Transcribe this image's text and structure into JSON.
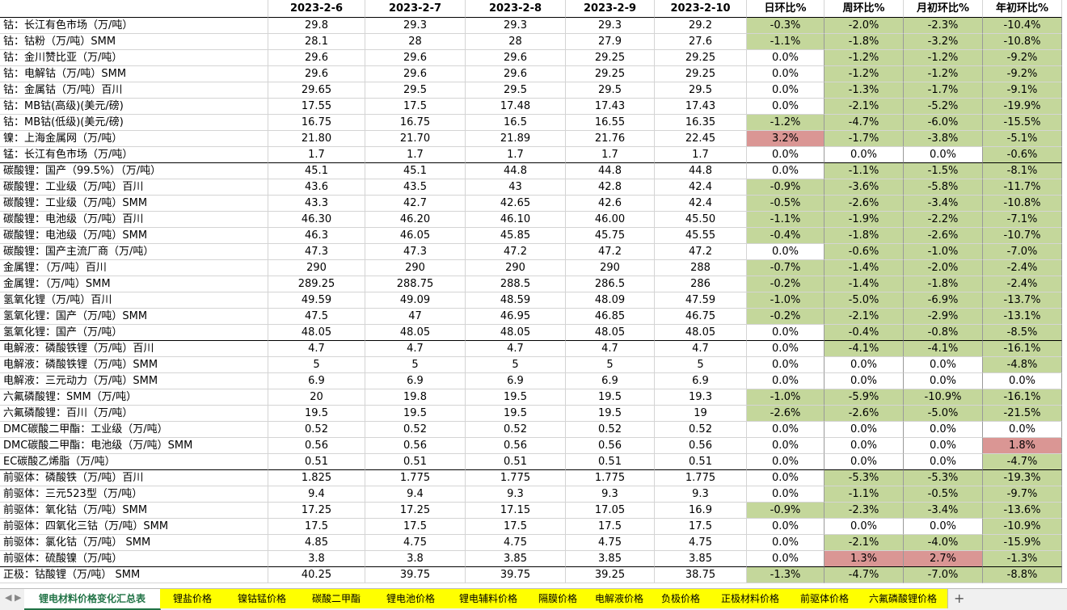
{
  "table": {
    "header": [
      "2023-2-6",
      "2023-2-7",
      "2023-2-8",
      "2023-2-9",
      "2023-2-10",
      "日环比%",
      "周环比%",
      "月初环比%",
      "年初环比%"
    ],
    "rows": [
      [
        "钴：长江有色市场（万/吨）",
        "29.8",
        "29.3",
        "29.3",
        "29.3",
        "29.2",
        "-0.3%",
        "-2.0%",
        "-2.3%",
        "-10.4%"
      ],
      [
        "钴：钴粉（万/吨）SMM",
        "28.1",
        "28",
        "28",
        "27.9",
        "27.6",
        "-1.1%",
        "-1.8%",
        "-3.2%",
        "-10.8%"
      ],
      [
        "钴：金川赞比亚（万/吨）",
        "29.6",
        "29.6",
        "29.6",
        "29.25",
        "29.25",
        "0.0%",
        "-1.2%",
        "-1.2%",
        "-9.2%"
      ],
      [
        "钴：电解钴（万/吨）SMM",
        "29.6",
        "29.6",
        "29.6",
        "29.25",
        "29.25",
        "0.0%",
        "-1.2%",
        "-1.2%",
        "-9.2%"
      ],
      [
        "钴：金属钴（万/吨）百川",
        "29.65",
        "29.5",
        "29.5",
        "29.5",
        "29.5",
        "0.0%",
        "-1.3%",
        "-1.7%",
        "-9.1%"
      ],
      [
        "钴：MB钴(高级)(美元/磅)",
        "17.55",
        "17.5",
        "17.48",
        "17.43",
        "17.43",
        "0.0%",
        "-2.1%",
        "-5.2%",
        "-19.9%"
      ],
      [
        "钴：MB钴(低级)(美元/磅)",
        "16.75",
        "16.75",
        "16.5",
        "16.55",
        "16.35",
        "-1.2%",
        "-4.7%",
        "-6.0%",
        "-15.5%"
      ],
      [
        "镍：上海金属网（万/吨）",
        "21.80",
        "21.70",
        "21.89",
        "21.76",
        "22.45",
        "3.2%",
        "-1.7%",
        "-3.8%",
        "-5.1%"
      ],
      [
        "锰：长江有色市场（万/吨）",
        "1.7",
        "1.7",
        "1.7",
        "1.7",
        "1.7",
        "0.0%",
        "0.0%",
        "0.0%",
        "-0.6%"
      ],
      [
        "碳酸锂：国产（99.5%）（万/吨）",
        "45.1",
        "45.1",
        "44.8",
        "44.8",
        "44.8",
        "0.0%",
        "-1.1%",
        "-1.5%",
        "-8.1%"
      ],
      [
        "碳酸锂：工业级（万/吨）百川",
        "43.6",
        "43.5",
        "43",
        "42.8",
        "42.4",
        "-0.9%",
        "-3.6%",
        "-5.8%",
        "-11.7%"
      ],
      [
        "碳酸锂：工业级（万/吨）SMM",
        "43.3",
        "42.7",
        "42.65",
        "42.6",
        "42.4",
        "-0.5%",
        "-2.6%",
        "-3.4%",
        "-10.8%"
      ],
      [
        "碳酸锂：电池级（万/吨）百川",
        "46.30",
        "46.20",
        "46.10",
        "46.00",
        "45.50",
        "-1.1%",
        "-1.9%",
        "-2.2%",
        "-7.1%"
      ],
      [
        "碳酸锂：电池级（万/吨）SMM",
        "46.3",
        "46.05",
        "45.85",
        "45.75",
        "45.55",
        "-0.4%",
        "-1.8%",
        "-2.6%",
        "-10.7%"
      ],
      [
        "碳酸锂：国产主流厂商（万/吨）",
        "47.3",
        "47.3",
        "47.2",
        "47.2",
        "47.2",
        "0.0%",
        "-0.6%",
        "-1.0%",
        "-7.0%"
      ],
      [
        "金属锂：（万/吨）百川",
        "290",
        "290",
        "290",
        "290",
        "288",
        "-0.7%",
        "-1.4%",
        "-2.0%",
        "-2.4%"
      ],
      [
        "金属锂：（万/吨）SMM",
        "289.25",
        "288.75",
        "288.5",
        "286.5",
        "286",
        "-0.2%",
        "-1.4%",
        "-1.8%",
        "-2.4%"
      ],
      [
        "氢氧化锂（万/吨）百川",
        "49.59",
        "49.09",
        "48.59",
        "48.09",
        "47.59",
        "-1.0%",
        "-5.0%",
        "-6.9%",
        "-13.7%"
      ],
      [
        "氢氧化锂：国产（万/吨）SMM",
        "47.5",
        "47",
        "46.95",
        "46.85",
        "46.75",
        "-0.2%",
        "-2.1%",
        "-2.9%",
        "-13.1%"
      ],
      [
        "氢氧化锂：国产（万/吨）",
        "48.05",
        "48.05",
        "48.05",
        "48.05",
        "48.05",
        "0.0%",
        "-0.4%",
        "-0.8%",
        "-8.5%"
      ],
      [
        "电解液：磷酸铁锂（万/吨）百川",
        "4.7",
        "4.7",
        "4.7",
        "4.7",
        "4.7",
        "0.0%",
        "-4.1%",
        "-4.1%",
        "-16.1%"
      ],
      [
        "电解液：磷酸铁锂（万/吨）SMM",
        "5",
        "5",
        "5",
        "5",
        "5",
        "0.0%",
        "0.0%",
        "0.0%",
        "-4.8%"
      ],
      [
        "电解液：三元动力（万/吨）SMM",
        "6.9",
        "6.9",
        "6.9",
        "6.9",
        "6.9",
        "0.0%",
        "0.0%",
        "0.0%",
        "0.0%"
      ],
      [
        "六氟磷酸锂：SMM（万/吨）",
        "20",
        "19.8",
        "19.5",
        "19.5",
        "19.3",
        "-1.0%",
        "-5.9%",
        "-10.9%",
        "-16.1%"
      ],
      [
        "六氟磷酸锂：百川（万/吨）",
        "19.5",
        "19.5",
        "19.5",
        "19.5",
        "19",
        "-2.6%",
        "-2.6%",
        "-5.0%",
        "-21.5%"
      ],
      [
        "DMC碳酸二甲酯：工业级（万/吨）",
        "0.52",
        "0.52",
        "0.52",
        "0.52",
        "0.52",
        "0.0%",
        "0.0%",
        "0.0%",
        "0.0%"
      ],
      [
        "DMC碳酸二甲酯：电池级（万/吨）SMM",
        "0.56",
        "0.56",
        "0.56",
        "0.56",
        "0.56",
        "0.0%",
        "0.0%",
        "0.0%",
        "1.8%"
      ],
      [
        "EC碳酸乙烯脂（万/吨）",
        "0.51",
        "0.51",
        "0.51",
        "0.51",
        "0.51",
        "0.0%",
        "0.0%",
        "0.0%",
        "-4.7%"
      ],
      [
        "前驱体：磷酸铁（万/吨）百川",
        "1.825",
        "1.775",
        "1.775",
        "1.775",
        "1.775",
        "0.0%",
        "-5.3%",
        "-5.3%",
        "-19.3%"
      ],
      [
        "前驱体：三元523型（万/吨）",
        "9.4",
        "9.4",
        "9.3",
        "9.3",
        "9.3",
        "0.0%",
        "-1.1%",
        "-0.5%",
        "-9.7%"
      ],
      [
        "前驱体：氧化钴（万/吨）SMM",
        "17.25",
        "17.25",
        "17.15",
        "17.05",
        "16.9",
        "-0.9%",
        "-2.3%",
        "-3.4%",
        "-13.6%"
      ],
      [
        "前驱体：四氧化三钴（万/吨）SMM",
        "17.5",
        "17.5",
        "17.5",
        "17.5",
        "17.5",
        "0.0%",
        "0.0%",
        "0.0%",
        "-10.9%"
      ],
      [
        "前驱体：氯化钴（万/吨） SMM",
        "4.85",
        "4.75",
        "4.75",
        "4.75",
        "4.75",
        "0.0%",
        "-2.1%",
        "-4.0%",
        "-15.9%"
      ],
      [
        "前驱体：硫酸镍（万/吨）",
        "3.8",
        "3.8",
        "3.85",
        "3.85",
        "3.85",
        "0.0%",
        "1.3%",
        "2.7%",
        "-1.3%"
      ],
      [
        "正极：钴酸锂（万/吨） SMM",
        "40.25",
        "39.75",
        "39.75",
        "39.25",
        "38.75",
        "-1.3%",
        "-4.7%",
        "-7.0%",
        "-8.8%"
      ]
    ],
    "group_ends": [
      8,
      19,
      27,
      33
    ]
  },
  "tabs": [
    "锂电材料价格变化汇总表",
    "锂盐价格",
    "镍钴锰价格",
    "碳酸二甲酯",
    "锂电池价格",
    "锂电辅料价格",
    "隔膜价格",
    "电解液价格",
    "负极价格",
    "正极材料价格",
    "前驱体价格",
    "六氟磷酸锂价格"
  ]
}
